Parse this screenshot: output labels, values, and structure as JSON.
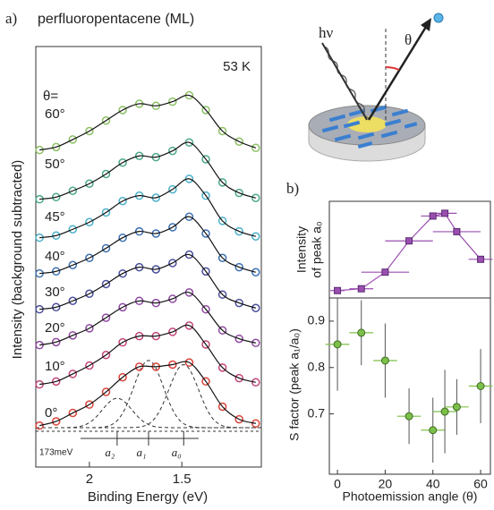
{
  "chart_data": [
    {
      "type": "line",
      "panel_label": "a)",
      "title": "perfluoropentacene (ML)",
      "annotation": "53 K",
      "theta_label": "θ=",
      "x_label": "Binding Energy (eV)",
      "y_label": "Intensity (background subtracted)",
      "xlim": [
        2.29,
        1.07
      ],
      "xticks": [
        2,
        1.5
      ],
      "ylim": [
        0,
        10
      ],
      "x": [
        2.27,
        2.18,
        2.09,
        2.0,
        1.91,
        1.82,
        1.73,
        1.64,
        1.55,
        1.46,
        1.37,
        1.28,
        1.19,
        1.1
      ],
      "series": [
        {
          "name": "0°",
          "color": "#d9433a",
          "values": [
            0.05,
            0.15,
            0.35,
            0.55,
            0.85,
            1.2,
            1.45,
            1.45,
            1.5,
            1.55,
            1.1,
            0.5,
            0.2,
            0.1
          ]
        },
        {
          "name": "10°",
          "color": "#c2457a",
          "values": [
            0.05,
            0.12,
            0.3,
            0.5,
            0.75,
            1.05,
            1.2,
            1.2,
            1.3,
            1.45,
            1.0,
            0.45,
            0.2,
            0.1
          ]
        },
        {
          "name": "20°",
          "color": "#8e4aa0",
          "values": [
            0.05,
            0.12,
            0.28,
            0.45,
            0.7,
            0.95,
            1.1,
            1.05,
            1.15,
            1.3,
            0.9,
            0.4,
            0.2,
            0.1
          ]
        },
        {
          "name": "30°",
          "color": "#4a4f9c",
          "values": [
            0.05,
            0.1,
            0.25,
            0.42,
            0.65,
            0.9,
            1.05,
            1.0,
            1.15,
            1.35,
            0.95,
            0.4,
            0.2,
            0.08
          ]
        },
        {
          "name": "40°",
          "color": "#3d6fb0",
          "values": [
            0.05,
            0.1,
            0.25,
            0.42,
            0.65,
            0.9,
            1.05,
            1.0,
            1.15,
            1.4,
            1.0,
            0.42,
            0.2,
            0.08
          ]
        },
        {
          "name": "45°",
          "color": "#4bb0c8",
          "values": [
            0.05,
            0.1,
            0.25,
            0.42,
            0.65,
            0.92,
            1.05,
            1.0,
            1.2,
            1.45,
            1.05,
            0.45,
            0.2,
            0.08
          ]
        },
        {
          "name": "50°",
          "color": "#4aa88a",
          "values": [
            0.05,
            0.1,
            0.25,
            0.42,
            0.65,
            0.92,
            1.08,
            1.05,
            1.2,
            1.4,
            1.0,
            0.45,
            0.2,
            0.08
          ]
        },
        {
          "name": "60°",
          "color": "#8cc063",
          "values": [
            0.05,
            0.12,
            0.3,
            0.5,
            0.75,
            1.0,
            1.15,
            1.1,
            1.2,
            1.35,
            1.0,
            0.5,
            0.25,
            0.1
          ]
        }
      ],
      "components": {
        "labels": [
          "a₂",
          "a₁",
          "a₀"
        ],
        "centers": [
          1.85,
          1.68,
          1.49
        ],
        "heights": [
          0.7,
          1.6,
          1.5
        ]
      },
      "splitting_label": "173meV"
    },
    {
      "type": "scatter",
      "panel_label": "b)",
      "y_label_lines": [
        "Intensity",
        "of peak a₀"
      ],
      "color": "#9a4fb0",
      "connected": true,
      "xlim": [
        -3.4,
        64.1
      ],
      "ylim": [
        0,
        1.05
      ],
      "x": [
        0,
        10,
        20,
        30,
        40,
        45,
        50,
        60
      ],
      "x_errors": [
        3,
        5,
        10,
        10,
        5,
        5,
        10,
        5
      ],
      "values": [
        0.08,
        0.1,
        0.28,
        0.62,
        0.89,
        0.92,
        0.72,
        0.42
      ]
    },
    {
      "type": "scatter",
      "y_label": "S factor (peak a₁/a₀)",
      "x_label": "Photoemission angle (θ)",
      "color": "#7cc04a",
      "connected": false,
      "xlim": [
        -3.4,
        64.1
      ],
      "xticks": [
        0,
        20,
        40,
        60
      ],
      "ylim": [
        0.57,
        0.95
      ],
      "yticks": [
        0.7,
        0.8,
        0.9
      ],
      "x": [
        0,
        10,
        20,
        30,
        40,
        45,
        50,
        60
      ],
      "x_errors": [
        5,
        5,
        5,
        5,
        5,
        5,
        5,
        5
      ],
      "values": [
        0.85,
        0.875,
        0.815,
        0.695,
        0.665,
        0.705,
        0.715,
        0.76
      ],
      "errors": [
        0.1,
        0.07,
        0.08,
        0.06,
        0.07,
        0.09,
        0.06,
        0.08
      ]
    }
  ],
  "diagram": {
    "photon_label": "hν",
    "angle_label": "θ"
  }
}
